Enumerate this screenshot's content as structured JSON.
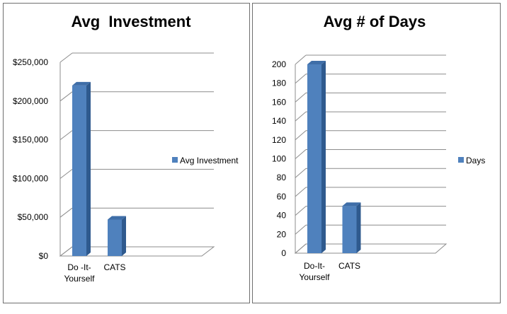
{
  "chart_data": [
    {
      "type": "bar",
      "title": "Avg  Investment",
      "categories": [
        "Do -It-\nYourself",
        "CATS"
      ],
      "series": [
        {
          "name": "Avg Investment",
          "values": [
            220000,
            47000
          ]
        }
      ],
      "ylim": [
        0,
        250000
      ],
      "yticks": [
        "$0",
        "$50,000",
        "$100,000",
        "$150,000",
        "$200,000",
        "$250,000"
      ],
      "grid": true,
      "legend": "right",
      "color": "#4F81BD"
    },
    {
      "type": "bar",
      "title": "Avg # of Days",
      "categories": [
        "Do-It-\nYourself",
        "CATS"
      ],
      "series": [
        {
          "name": "Days",
          "values": [
            200,
            50
          ]
        }
      ],
      "ylim": [
        0,
        200
      ],
      "yticks": [
        "0",
        "20",
        "40",
        "60",
        "80",
        "100",
        "120",
        "140",
        "160",
        "180",
        "200"
      ],
      "grid": true,
      "legend": "right",
      "color": "#4F81BD"
    }
  ]
}
